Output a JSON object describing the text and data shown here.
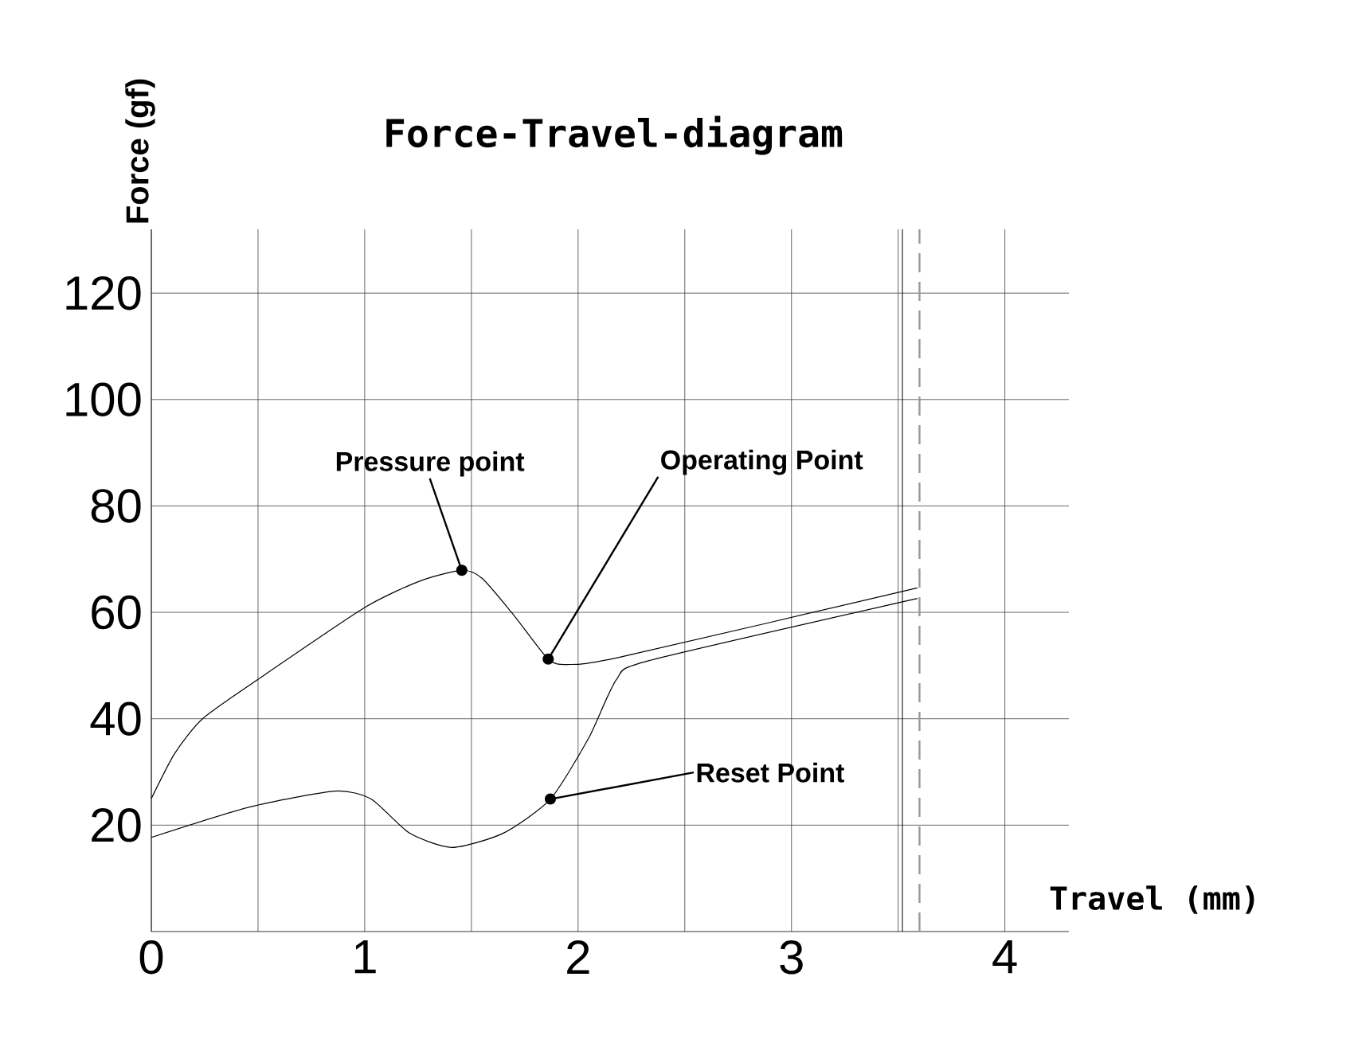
{
  "chart_data": {
    "type": "line",
    "title": "Force-Travel-diagram",
    "xlabel": "Travel (mm)",
    "ylabel": "Force (gf)",
    "xlim": [
      0,
      4.3
    ],
    "ylim": [
      0,
      132
    ],
    "xticks": [
      0,
      {
        "value": 0.5,
        "label": null
      },
      1,
      {
        "value": 1.5,
        "label": null
      },
      2,
      {
        "value": 2.5,
        "label": null
      },
      3,
      {
        "value": 3.5,
        "label": null
      },
      4
    ],
    "yticks": [
      20,
      40,
      60,
      80,
      100,
      120
    ],
    "grid": true,
    "marker": "none",
    "line_style": "solid",
    "series": [
      {
        "color": "#000000",
        "x": [
          0,
          0.11,
          0.24,
          0.5,
          1.0,
          1.26,
          1.455,
          1.55,
          1.7,
          1.86,
          1.95,
          2.2,
          3.59
        ],
        "values": [
          25,
          33.5,
          40,
          47.4,
          60.9,
          65.9,
          67.9,
          66.4,
          59.4,
          51.2,
          50.2,
          51.6,
          64.6
        ]
      },
      {
        "color": "#000000",
        "x": [
          0,
          0.46,
          0.86,
          1.03,
          1.21,
          1.41,
          1.65,
          1.87,
          2.05,
          2.18,
          2.33,
          3.59
        ],
        "values": [
          17.7,
          23.4,
          26.4,
          24.9,
          18.5,
          15.8,
          18.5,
          24.9,
          36.4,
          47.4,
          50.9,
          62.6
        ]
      }
    ],
    "ref_lines": [
      {
        "axis": "x",
        "value": 3.52,
        "color": "#000000",
        "line_style": "solid"
      },
      {
        "axis": "x",
        "value": 3.6,
        "color": "#999999",
        "line_style": "dashed"
      }
    ],
    "annotations": [
      {
        "text": "Pressure point",
        "x": 1.455,
        "y": 67.9
      },
      {
        "text": "Operating Point",
        "x": 1.86,
        "y": 51.2
      },
      {
        "text": "Reset Point",
        "x": 1.87,
        "y": 24.9
      }
    ]
  }
}
